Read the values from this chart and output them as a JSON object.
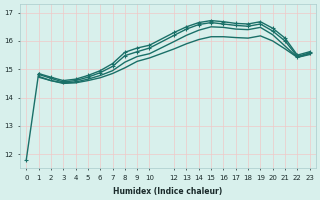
{
  "xlabel": "Humidex (Indice chaleur)",
  "background_color": "#d8f0ec",
  "grid_color": "#c8e8e0",
  "line_color": "#1a7068",
  "xlim": [
    -0.5,
    23.5
  ],
  "ylim": [
    11.5,
    17.3
  ],
  "yticks": [
    12,
    13,
    14,
    15,
    16,
    17
  ],
  "xticks": [
    0,
    1,
    2,
    3,
    4,
    5,
    6,
    7,
    8,
    9,
    10,
    12,
    13,
    14,
    15,
    16,
    17,
    18,
    19,
    20,
    21,
    22,
    23
  ],
  "xtick_labels": [
    "0",
    "1",
    "2",
    "3",
    "4",
    "5",
    "6",
    "7",
    "8",
    "9",
    "10",
    "12",
    "13",
    "14",
    "15",
    "16",
    "17",
    "18",
    "19",
    "20",
    "21",
    "22",
    "23"
  ],
  "series": [
    {
      "x": [
        0,
        1,
        2,
        3,
        4,
        5,
        6,
        7,
        8,
        9,
        10,
        12,
        13,
        14,
        15,
        16,
        17,
        18,
        19,
        20,
        21,
        22,
        23
      ],
      "y": [
        11.8,
        14.85,
        14.72,
        14.6,
        14.65,
        14.78,
        14.95,
        15.2,
        15.6,
        15.75,
        15.85,
        16.3,
        16.5,
        16.65,
        16.72,
        16.68,
        16.62,
        16.6,
        16.68,
        16.45,
        16.1,
        15.5,
        15.62
      ],
      "marker": true,
      "linewidth": 1.0
    },
    {
      "x": [
        1,
        2,
        3,
        4,
        5,
        6,
        7,
        8,
        9,
        10,
        12,
        13,
        14,
        15,
        16,
        17,
        18,
        19,
        20,
        21,
        22,
        23
      ],
      "y": [
        14.82,
        14.68,
        14.55,
        14.6,
        14.72,
        14.88,
        15.1,
        15.48,
        15.62,
        15.75,
        16.2,
        16.42,
        16.58,
        16.65,
        16.6,
        16.55,
        16.52,
        16.6,
        16.35,
        16.0,
        15.45,
        15.58
      ],
      "marker": true,
      "linewidth": 1.0
    },
    {
      "x": [
        1,
        2,
        3,
        4,
        5,
        6,
        7,
        8,
        9,
        10,
        12,
        13,
        14,
        15,
        16,
        17,
        18,
        19,
        20,
        21,
        22,
        23
      ],
      "y": [
        14.75,
        14.6,
        14.52,
        14.55,
        14.65,
        14.78,
        14.95,
        15.25,
        15.45,
        15.55,
        15.98,
        16.2,
        16.38,
        16.5,
        16.48,
        16.42,
        16.4,
        16.48,
        16.22,
        15.82,
        15.42,
        15.55
      ],
      "marker": false,
      "linewidth": 1.0
    },
    {
      "x": [
        1,
        2,
        3,
        4,
        5,
        6,
        7,
        8,
        9,
        10,
        12,
        13,
        14,
        15,
        16,
        17,
        18,
        19,
        20,
        21,
        22,
        23
      ],
      "y": [
        14.72,
        14.6,
        14.5,
        14.52,
        14.6,
        14.7,
        14.85,
        15.05,
        15.28,
        15.4,
        15.72,
        15.9,
        16.05,
        16.15,
        16.15,
        16.12,
        16.1,
        16.18,
        16.0,
        15.72,
        15.42,
        15.52
      ],
      "marker": false,
      "linewidth": 1.0
    }
  ]
}
